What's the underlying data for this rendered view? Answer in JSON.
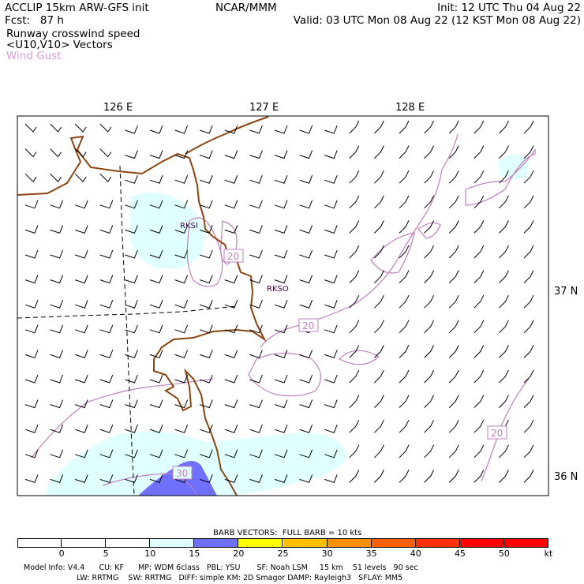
{
  "header": {
    "model": "ACCLIP 15km ARW-GFS init",
    "fcst": "Fcst:   87 h",
    "org": "NCAR/MMM",
    "init": "Init: 12 UTC Thu 04 Aug 22",
    "valid": "Valid: 03 UTC Mon 08 Aug 22 (12 KST Mon 08 Aug 22)",
    "field1": "Runway crosswind speed",
    "field2": "<U10,V10> Vectors",
    "field3": "Wind Gust",
    "field3_color": "#d8a0d8"
  },
  "map": {
    "lon_labels": [
      "126 E",
      "127 E",
      "128 E"
    ],
    "lat_labels": [
      "37 N",
      "36 N"
    ],
    "stations": [
      "RKSI",
      "RKSO"
    ],
    "contour_labels": [
      "20",
      "20",
      "20",
      "30"
    ],
    "coast_color": "#8b4513",
    "gust_color": "#c080c0",
    "shade_light": "#e0ffff",
    "shade_blue": "#7070ff"
  },
  "colorbar": {
    "title": "BARB VECTORS:  FULL BARB = 10 kts",
    "ticks": [
      "0",
      "5",
      "10",
      "15",
      "20",
      "25",
      "30",
      "35",
      "40",
      "45",
      "50",
      "kt"
    ],
    "colors": [
      "#ffffff",
      "#ffffff",
      "#ffffff",
      "#e0ffff",
      "#7070ff",
      "#ffff00",
      "#ffc000",
      "#ff9000",
      "#ff6000",
      "#ff3000",
      "#ff0000",
      "#ff0000"
    ]
  },
  "footer": {
    "line1": "Model Info: V4.4      CU: KF      MP: WDM 6class   PBL: YSU       SF: Noah LSM     15 km    51 levels   90 sec",
    "line2": "LW: RRTMG    SW: RRTMG   DIFF: simple KM: 2D Smagor DAMP: Rayleigh3   SFLAY: MM5"
  }
}
